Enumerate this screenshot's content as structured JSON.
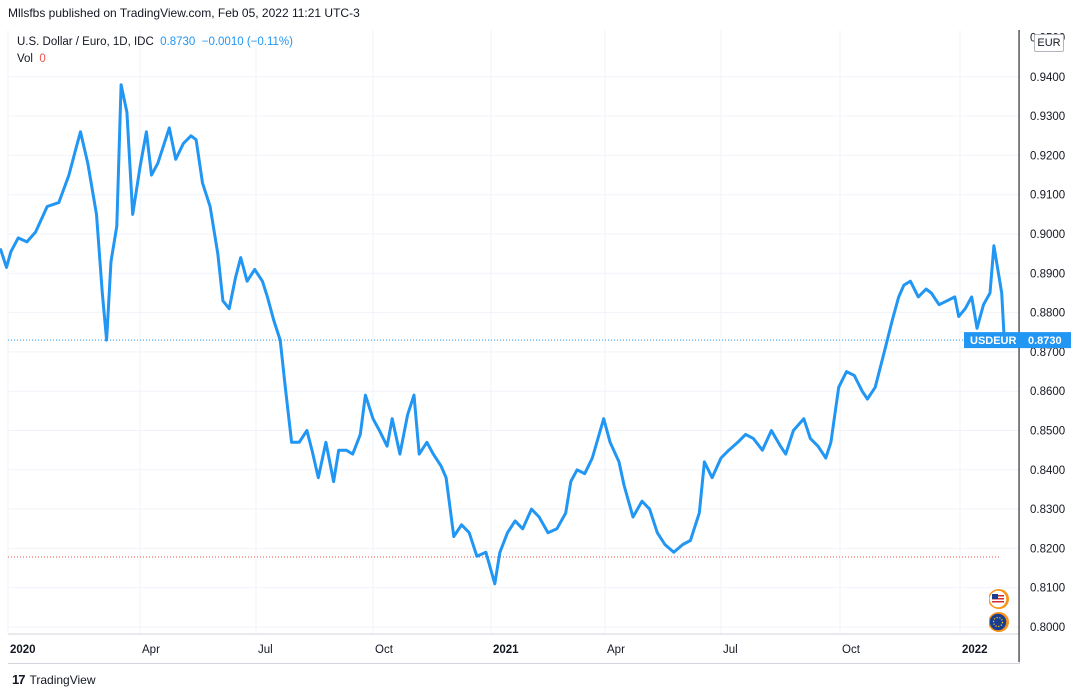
{
  "header": {
    "published": "Mllsfbs published on TradingView.com, Feb 05, 2022 11:21 UTC-3"
  },
  "legend": {
    "symbol": "U.S. Dollar / Euro, 1D, IDC",
    "last": "0.8730",
    "change": "−0.0010 (−0.11%)",
    "vol_label": "Vol",
    "vol_value": "0"
  },
  "currency": "EUR",
  "footer": {
    "logo": "17",
    "brand": "TradingView"
  },
  "colors": {
    "line": "#2196f3",
    "grid": "#f0f3fa",
    "text": "#131722",
    "price_tag": "#2196f3",
    "low_line": "#ef5350"
  },
  "chart_data": {
    "type": "line",
    "ylim": [
      0.8,
      0.9508
    ],
    "y_ticks": [
      "0.8000",
      "0.8100",
      "0.8200",
      "0.8300",
      "0.8400",
      "0.8500",
      "0.8600",
      "0.8700",
      "0.8800",
      "0.8900",
      "0.9000",
      "0.9100",
      "0.9200",
      "0.9300",
      "0.9400"
    ],
    "top_tick_partial": "0.9500",
    "x_ticks": [
      {
        "label": "2020",
        "date": "2020-01-01",
        "bold": true
      },
      {
        "label": "Apr",
        "date": "2020-04-01",
        "bold": false
      },
      {
        "label": "Jul",
        "date": "2020-07-01",
        "bold": false
      },
      {
        "label": "Oct",
        "date": "2020-10-01",
        "bold": false
      },
      {
        "label": "2021",
        "date": "2021-01-01",
        "bold": true
      },
      {
        "label": "Apr",
        "date": "2021-04-01",
        "bold": false
      },
      {
        "label": "Jul",
        "date": "2021-07-01",
        "bold": false
      },
      {
        "label": "Oct",
        "date": "2021-10-01",
        "bold": false
      },
      {
        "label": "2022",
        "date": "2022-01-01",
        "bold": true
      }
    ],
    "series": [
      {
        "values": [
          [
            "2019-12-27",
            0.896
          ],
          [
            "2019-12-31",
            0.8915
          ],
          [
            "2020-01-03",
            0.8955
          ],
          [
            "2020-01-08",
            0.899
          ],
          [
            "2020-01-14",
            0.898
          ],
          [
            "2020-01-20",
            0.9005
          ],
          [
            "2020-01-28",
            0.907
          ],
          [
            "2020-02-05",
            0.908
          ],
          [
            "2020-02-12",
            0.915
          ],
          [
            "2020-02-17",
            0.922
          ],
          [
            "2020-02-20",
            0.926
          ],
          [
            "2020-02-25",
            0.918
          ],
          [
            "2020-03-02",
            0.905
          ],
          [
            "2020-03-06",
            0.885
          ],
          [
            "2020-03-09",
            0.873
          ],
          [
            "2020-03-12",
            0.893
          ],
          [
            "2020-03-16",
            0.902
          ],
          [
            "2020-03-19",
            0.938
          ],
          [
            "2020-03-23",
            0.931
          ],
          [
            "2020-03-27",
            0.905
          ],
          [
            "2020-04-01",
            0.917
          ],
          [
            "2020-04-06",
            0.926
          ],
          [
            "2020-04-10",
            0.915
          ],
          [
            "2020-04-15",
            0.918
          ],
          [
            "2020-04-20",
            0.923
          ],
          [
            "2020-04-24",
            0.927
          ],
          [
            "2020-04-29",
            0.919
          ],
          [
            "2020-05-05",
            0.923
          ],
          [
            "2020-05-11",
            0.925
          ],
          [
            "2020-05-15",
            0.924
          ],
          [
            "2020-05-20",
            0.913
          ],
          [
            "2020-05-26",
            0.907
          ],
          [
            "2020-06-01",
            0.895
          ],
          [
            "2020-06-05",
            0.883
          ],
          [
            "2020-06-10",
            0.881
          ],
          [
            "2020-06-15",
            0.889
          ],
          [
            "2020-06-19",
            0.894
          ],
          [
            "2020-06-24",
            0.888
          ],
          [
            "2020-06-30",
            0.891
          ],
          [
            "2020-07-06",
            0.888
          ],
          [
            "2020-07-10",
            0.884
          ],
          [
            "2020-07-15",
            0.878
          ],
          [
            "2020-07-20",
            0.873
          ],
          [
            "2020-07-24",
            0.861
          ],
          [
            "2020-07-29",
            0.847
          ],
          [
            "2020-08-04",
            0.847
          ],
          [
            "2020-08-10",
            0.85
          ],
          [
            "2020-08-14",
            0.845
          ],
          [
            "2020-08-19",
            0.838
          ],
          [
            "2020-08-25",
            0.847
          ],
          [
            "2020-08-31",
            0.837
          ],
          [
            "2020-09-04",
            0.845
          ],
          [
            "2020-09-10",
            0.845
          ],
          [
            "2020-09-15",
            0.844
          ],
          [
            "2020-09-21",
            0.849
          ],
          [
            "2020-09-25",
            0.859
          ],
          [
            "2020-10-01",
            0.853
          ],
          [
            "2020-10-06",
            0.85
          ],
          [
            "2020-10-12",
            0.846
          ],
          [
            "2020-10-16",
            0.853
          ],
          [
            "2020-10-22",
            0.844
          ],
          [
            "2020-10-28",
            0.854
          ],
          [
            "2020-11-02",
            0.859
          ],
          [
            "2020-11-06",
            0.844
          ],
          [
            "2020-11-12",
            0.847
          ],
          [
            "2020-11-17",
            0.844
          ],
          [
            "2020-11-23",
            0.841
          ],
          [
            "2020-11-27",
            0.838
          ],
          [
            "2020-12-03",
            0.823
          ],
          [
            "2020-12-09",
            0.826
          ],
          [
            "2020-12-15",
            0.824
          ],
          [
            "2020-12-21",
            0.818
          ],
          [
            "2020-12-28",
            0.819
          ],
          [
            "2021-01-04",
            0.811
          ],
          [
            "2021-01-08",
            0.819
          ],
          [
            "2021-01-14",
            0.824
          ],
          [
            "2021-01-20",
            0.827
          ],
          [
            "2021-01-26",
            0.825
          ],
          [
            "2021-02-02",
            0.83
          ],
          [
            "2021-02-08",
            0.828
          ],
          [
            "2021-02-15",
            0.824
          ],
          [
            "2021-02-22",
            0.825
          ],
          [
            "2021-03-01",
            0.829
          ],
          [
            "2021-03-05",
            0.837
          ],
          [
            "2021-03-10",
            0.84
          ],
          [
            "2021-03-16",
            0.839
          ],
          [
            "2021-03-22",
            0.843
          ],
          [
            "2021-03-31",
            0.853
          ],
          [
            "2021-04-05",
            0.847
          ],
          [
            "2021-04-12",
            0.842
          ],
          [
            "2021-04-16",
            0.836
          ],
          [
            "2021-04-23",
            0.828
          ],
          [
            "2021-04-30",
            0.832
          ],
          [
            "2021-05-06",
            0.83
          ],
          [
            "2021-05-12",
            0.824
          ],
          [
            "2021-05-18",
            0.821
          ],
          [
            "2021-05-25",
            0.819
          ],
          [
            "2021-06-01",
            0.821
          ],
          [
            "2021-06-07",
            0.822
          ],
          [
            "2021-06-14",
            0.829
          ],
          [
            "2021-06-18",
            0.842
          ],
          [
            "2021-06-24",
            0.838
          ],
          [
            "2021-07-01",
            0.843
          ],
          [
            "2021-07-07",
            0.845
          ],
          [
            "2021-07-14",
            0.847
          ],
          [
            "2021-07-20",
            0.849
          ],
          [
            "2021-07-26",
            0.848
          ],
          [
            "2021-08-02",
            0.845
          ],
          [
            "2021-08-09",
            0.85
          ],
          [
            "2021-08-16",
            0.846
          ],
          [
            "2021-08-20",
            0.844
          ],
          [
            "2021-08-26",
            0.85
          ],
          [
            "2021-09-03",
            0.853
          ],
          [
            "2021-09-08",
            0.848
          ],
          [
            "2021-09-14",
            0.846
          ],
          [
            "2021-09-20",
            0.843
          ],
          [
            "2021-09-24",
            0.847
          ],
          [
            "2021-09-30",
            0.861
          ],
          [
            "2021-10-06",
            0.865
          ],
          [
            "2021-10-12",
            0.864
          ],
          [
            "2021-10-18",
            0.86
          ],
          [
            "2021-10-22",
            0.858
          ],
          [
            "2021-10-28",
            0.861
          ],
          [
            "2021-11-04",
            0.87
          ],
          [
            "2021-11-10",
            0.878
          ],
          [
            "2021-11-15",
            0.884
          ],
          [
            "2021-11-19",
            0.887
          ],
          [
            "2021-11-24",
            0.888
          ],
          [
            "2021-11-30",
            0.884
          ],
          [
            "2021-12-06",
            0.886
          ],
          [
            "2021-12-10",
            0.885
          ],
          [
            "2021-12-16",
            0.882
          ],
          [
            "2021-12-22",
            0.883
          ],
          [
            "2021-12-28",
            0.884
          ],
          [
            "2021-12-31",
            0.879
          ],
          [
            "2022-01-05",
            0.881
          ],
          [
            "2022-01-10",
            0.884
          ],
          [
            "2022-01-14",
            0.876
          ],
          [
            "2022-01-19",
            0.882
          ],
          [
            "2022-01-24",
            0.885
          ],
          [
            "2022-01-27",
            0.897
          ],
          [
            "2022-01-31",
            0.889
          ],
          [
            "2022-02-02",
            0.885
          ],
          [
            "2022-02-04",
            0.873
          ]
        ]
      }
    ],
    "last_price_label": "USDEUR",
    "last_price_value": "0.8730",
    "last_price": 0.873,
    "low_line_value": 0.8178
  }
}
